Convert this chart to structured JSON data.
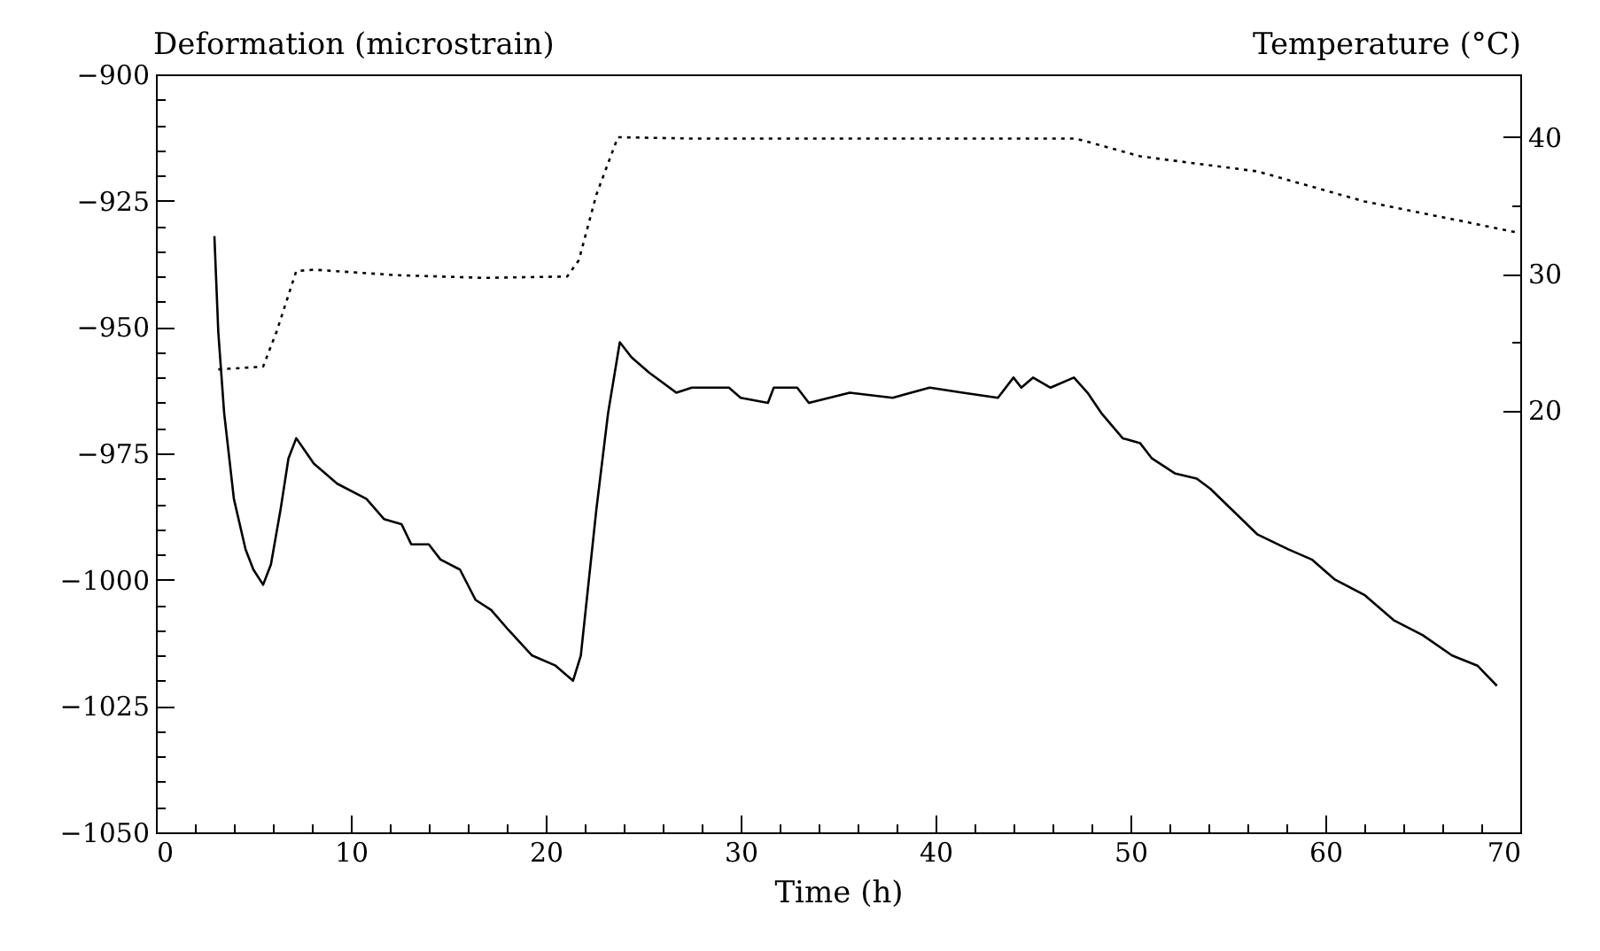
{
  "chart_data": {
    "type": "line",
    "xlabel": "Time (h)",
    "ylabel": "Deformation (microstrain)",
    "y2label": "Temperature (°C)",
    "xlim": [
      0,
      70
    ],
    "xticks": [
      0,
      {
        "value": 2,
        "label": null
      },
      {
        "value": 4,
        "label": null
      },
      {
        "value": 6,
        "label": null
      },
      {
        "value": 8,
        "label": null
      },
      10,
      {
        "value": 12,
        "label": null
      },
      {
        "value": 14,
        "label": null
      },
      {
        "value": 16,
        "label": null
      },
      {
        "value": 18,
        "label": null
      },
      20,
      {
        "value": 22,
        "label": null
      },
      {
        "value": 24,
        "label": null
      },
      {
        "value": 26,
        "label": null
      },
      {
        "value": 28,
        "label": null
      },
      30,
      {
        "value": 32,
        "label": null
      },
      {
        "value": 34,
        "label": null
      },
      {
        "value": 36,
        "label": null
      },
      {
        "value": 38,
        "label": null
      },
      40,
      {
        "value": 42,
        "label": null
      },
      {
        "value": 44,
        "label": null
      },
      {
        "value": 46,
        "label": null
      },
      {
        "value": 48,
        "label": null
      },
      50,
      {
        "value": 52,
        "label": null
      },
      {
        "value": 54,
        "label": null
      },
      {
        "value": 56,
        "label": null
      },
      {
        "value": 58,
        "label": null
      },
      60,
      {
        "value": 62,
        "label": null
      },
      {
        "value": 64,
        "label": null
      },
      {
        "value": 66,
        "label": null
      },
      {
        "value": 68,
        "label": null
      },
      70
    ],
    "ylim": [
      -1050,
      -900
    ],
    "yticks": [
      -1050,
      {
        "value": -1045,
        "label": null
      },
      {
        "value": -1040,
        "label": null
      },
      {
        "value": -1035,
        "label": null
      },
      {
        "value": -1030,
        "label": null
      },
      -1025,
      {
        "value": -1020,
        "label": null
      },
      {
        "value": -1015,
        "label": null
      },
      {
        "value": -1010,
        "label": null
      },
      {
        "value": -1005,
        "label": null
      },
      -1000,
      {
        "value": -995,
        "label": null
      },
      {
        "value": -990,
        "label": null
      },
      {
        "value": -985,
        "label": null
      },
      {
        "value": -980,
        "label": null
      },
      -975,
      {
        "value": -970,
        "label": null
      },
      {
        "value": -965,
        "label": null
      },
      {
        "value": -960,
        "label": null
      },
      {
        "value": -955,
        "label": null
      },
      -950,
      {
        "value": -945,
        "label": null
      },
      {
        "value": -940,
        "label": null
      },
      {
        "value": -935,
        "label": null
      },
      {
        "value": -930,
        "label": null
      },
      -925,
      {
        "value": -920,
        "label": null
      },
      {
        "value": -915,
        "label": null
      },
      {
        "value": -910,
        "label": null
      },
      {
        "value": -905,
        "label": null
      },
      -900
    ],
    "y2lim": [
      -10.9,
      44.6
    ],
    "y2ticks": [
      20,
      {
        "value": 25,
        "label": null
      },
      30,
      {
        "value": 35,
        "label": null
      },
      40
    ],
    "grid": false,
    "legend": false,
    "series": [
      {
        "color": "#000000",
        "line_style": "solid",
        "x": [
          3.0,
          3.2,
          3.5,
          4.0,
          4.6,
          5.0,
          5.5,
          5.9,
          6.4,
          6.8,
          7.2,
          8.1,
          9.3,
          10.8,
          11.7,
          12.6,
          13.1,
          14.0,
          14.6,
          15.6,
          16.4,
          17.2,
          18.1,
          19.3,
          20.5,
          21.4,
          21.8,
          22.6,
          23.2,
          23.8,
          24.4,
          25.3,
          26.7,
          27.5,
          27.8,
          29.4,
          30.0,
          31.4,
          31.7,
          32.9,
          33.5,
          35.6,
          37.8,
          39.7,
          41.4,
          43.2,
          44.0,
          44.4,
          45.0,
          45.9,
          47.1,
          47.8,
          48.5,
          49.6,
          50.5,
          51.1,
          52.3,
          53.4,
          54.1,
          56.5,
          58.1,
          59.3,
          60.5,
          62.0,
          63.5,
          65.0,
          66.5,
          67.8,
          68.8
        ],
        "values": [
          -932,
          -951,
          -967,
          -984,
          -994,
          -998,
          -1001,
          -997,
          -986,
          -976,
          -972,
          -977,
          -981,
          -984,
          -988,
          -989,
          -993,
          -993,
          -996,
          -998,
          -1004,
          -1006,
          -1010,
          -1015,
          -1017,
          -1020,
          -1015,
          -986,
          -967,
          -953,
          -956,
          -959,
          -963,
          -962,
          -962,
          -962,
          -964,
          -965,
          -962,
          -962,
          -965,
          -963,
          -964,
          -962,
          -963,
          -964,
          -960,
          -962,
          -960,
          -962,
          -960,
          -963,
          -967,
          -972,
          -973,
          -976,
          -979,
          -980,
          -982,
          -991,
          -994,
          -996,
          -1000,
          -1003,
          -1008,
          -1011,
          -1015,
          -1017,
          -1021
        ]
      },
      {
        "color": "#000000",
        "line_style": "dotted",
        "axis": "y2",
        "x": [
          3.2,
          5.5,
          6.2,
          7.2,
          8.1,
          12.3,
          16.8,
          21.1,
          21.7,
          22.6,
          23.7,
          27.5,
          47.2,
          50.5,
          56.5,
          62.0,
          67.2,
          69.9
        ],
        "values": [
          23.0,
          23.2,
          25.8,
          30.2,
          30.3,
          29.9,
          29.7,
          29.8,
          31.0,
          35.8,
          40.0,
          39.9,
          39.9,
          38.6,
          37.5,
          35.3,
          33.8,
          33.0
        ]
      }
    ]
  }
}
